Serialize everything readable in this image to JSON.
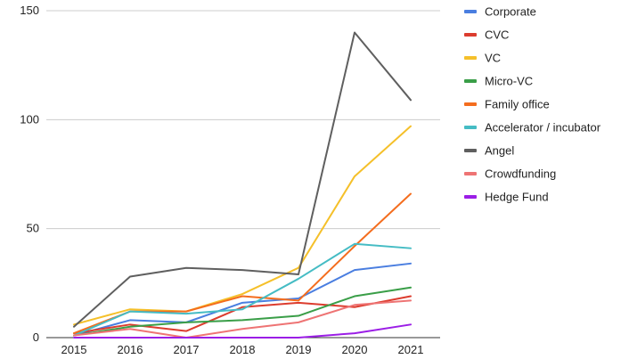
{
  "chart_data": {
    "type": "line",
    "title": "",
    "xlabel": "",
    "ylabel": "",
    "x": [
      2015,
      2016,
      2017,
      2018,
      2019,
      2020,
      2021
    ],
    "x_tick_labels": [
      "2015",
      "2016",
      "2017",
      "2018",
      "2019",
      "2020",
      "2021"
    ],
    "y_ticks": [
      0,
      50,
      100,
      150
    ],
    "y_tick_labels": [
      "0",
      "50",
      "100",
      "150"
    ],
    "ylim": [
      0,
      150
    ],
    "grid": "horizontal",
    "legend_position": "right",
    "series": [
      {
        "name": "Corporate",
        "color": "#4a7ee0",
        "values": [
          1,
          8,
          7,
          16,
          18,
          31,
          34
        ]
      },
      {
        "name": "CVC",
        "color": "#dc3c2e",
        "values": [
          2,
          6,
          3,
          14,
          16,
          14,
          19
        ]
      },
      {
        "name": "VC",
        "color": "#f5c02a",
        "values": [
          6,
          13,
          12,
          20,
          32,
          74,
          97
        ]
      },
      {
        "name": "Micro-VC",
        "color": "#3a9e48",
        "values": [
          1,
          5,
          7,
          8,
          10,
          19,
          23
        ]
      },
      {
        "name": "Family office",
        "color": "#f46d1e",
        "values": [
          2,
          12,
          12,
          19,
          17,
          42,
          66
        ]
      },
      {
        "name": "Accelerator / incubator",
        "color": "#45bcc4",
        "values": [
          1,
          12,
          11,
          13,
          27,
          43,
          41
        ]
      },
      {
        "name": "Angel",
        "color": "#5f5f5f",
        "values": [
          5,
          28,
          32,
          31,
          29,
          140,
          109
        ]
      },
      {
        "name": "Crowdfunding",
        "color": "#ee7474",
        "values": [
          1,
          4,
          0,
          4,
          7,
          15,
          17
        ]
      },
      {
        "name": "Hedge Fund",
        "color": "#9b1ee6",
        "values": [
          0,
          0,
          0,
          0,
          0,
          2,
          6
        ]
      }
    ]
  }
}
